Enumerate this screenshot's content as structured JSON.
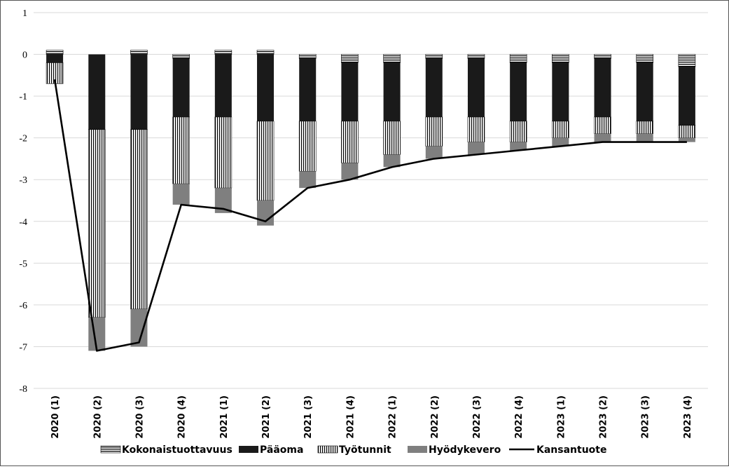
{
  "chart_data": {
    "type": "bar",
    "stacked": true,
    "title": "",
    "xlabel": "",
    "ylabel": "",
    "ylim": [
      -8,
      1
    ],
    "yticks": [
      1,
      0,
      -1,
      -2,
      -3,
      -4,
      -5,
      -6,
      -7,
      -8
    ],
    "grid": true,
    "legend_position": "bottom",
    "categories": [
      "2020 (1)",
      "2020 (2)",
      "2020 (3)",
      "2020 (4)",
      "2021 (1)",
      "2021 (2)",
      "2021 (3)",
      "2021 (4)",
      "2022 (1)",
      "2022 (2)",
      "2022 (3)",
      "2022 (4)",
      "2023 (1)",
      "2023 (2)",
      "2023 (3)",
      "2023 (4)"
    ],
    "series": [
      {
        "name": "Kokonaistuottavuus",
        "kind": "bar",
        "color": "#ffffff",
        "pattern": "horizontal-stripes",
        "values": [
          0.1,
          0.0,
          0.1,
          -0.1,
          0.1,
          0.1,
          -0.1,
          -0.2,
          -0.2,
          -0.1,
          -0.1,
          -0.2,
          -0.2,
          -0.1,
          -0.2,
          -0.3
        ]
      },
      {
        "name": "Pääoma",
        "kind": "bar",
        "color": "#1a1a1a",
        "pattern": "solid",
        "values": [
          -0.2,
          -1.8,
          -1.8,
          -1.4,
          -1.5,
          -1.6,
          -1.5,
          -1.4,
          -1.4,
          -1.4,
          -1.4,
          -1.4,
          -1.4,
          -1.4,
          -1.4,
          -1.4
        ]
      },
      {
        "name": "Työtunnit",
        "kind": "bar",
        "color": "#ffffff",
        "pattern": "vertical-stripes",
        "values": [
          -0.5,
          -4.5,
          -4.3,
          -1.6,
          -1.7,
          -1.9,
          -1.2,
          -1.0,
          -0.8,
          -0.7,
          -0.6,
          -0.5,
          -0.4,
          -0.4,
          -0.3,
          -0.3
        ]
      },
      {
        "name": "Hyödykevero",
        "kind": "bar",
        "color": "#7f7f7f",
        "pattern": "solid",
        "values": [
          0.0,
          -0.8,
          -0.9,
          -0.5,
          -0.6,
          -0.6,
          -0.4,
          -0.4,
          -0.3,
          -0.3,
          -0.3,
          -0.2,
          -0.2,
          -0.2,
          -0.2,
          -0.1
        ]
      },
      {
        "name": "Kansantuote",
        "kind": "line",
        "color": "#000000",
        "values": [
          -0.6,
          -7.1,
          -6.9,
          -3.6,
          -3.7,
          -4.0,
          -3.2,
          -3.0,
          -2.7,
          -2.5,
          -2.4,
          -2.3,
          -2.2,
          -2.1,
          -2.1,
          -2.1
        ]
      }
    ]
  }
}
